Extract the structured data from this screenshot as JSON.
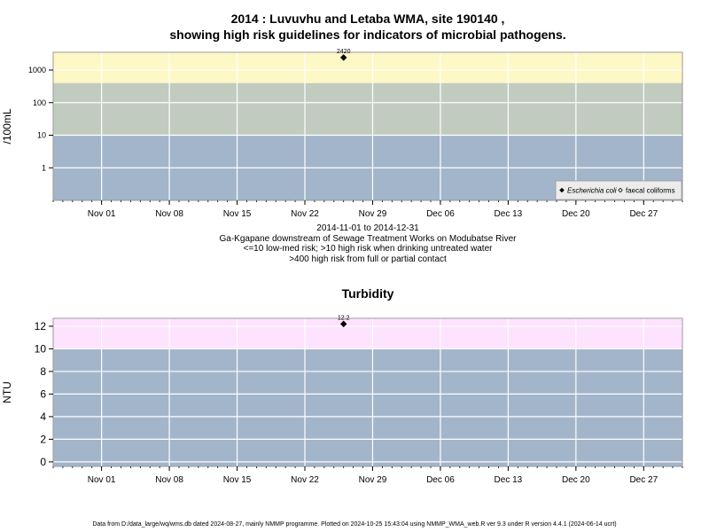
{
  "page": {
    "title_line1": "2014 : Luvuvhu and Letaba WMA, site 190140 ,",
    "title_line2": "showing high risk guidelines for indicators of microbial pathogens.",
    "caption_lines": [
      "2014-11-01 to 2014-12-31",
      "Ga-Kgapane downstream of Sewage Treatment Works on Modubatse River",
      "<=10 low-med risk; >10 high risk when drinking untreated water",
      ">400 high risk from full or partial contact"
    ],
    "turbidity_title": "Turbidity",
    "footer": "Data from D:/data_large/wq/wms.db dated 2024-08-27, mainly NMMP programme. Plotted on 2024-10-25 15:43:04 using NMMP_WMA_web.R ver 9.3 under R version 4.4.1 (2024-06-14 ucrt)"
  },
  "chart_data": [
    {
      "type": "scatter",
      "ylabel": "/100mL",
      "yscale": "log",
      "x_range": [
        "2014-10-27",
        "2014-12-31"
      ],
      "ylim": [
        0.1,
        3500
      ],
      "x_ticks": [
        {
          "date": "2014-11-01",
          "label": "Nov 01"
        },
        {
          "date": "2014-11-08",
          "label": "Nov 08"
        },
        {
          "date": "2014-11-15",
          "label": "Nov 15"
        },
        {
          "date": "2014-11-22",
          "label": "Nov 22"
        },
        {
          "date": "2014-11-29",
          "label": "Nov 29"
        },
        {
          "date": "2014-12-06",
          "label": "Dec 06"
        },
        {
          "date": "2014-12-13",
          "label": "Dec 13"
        },
        {
          "date": "2014-12-20",
          "label": "Dec 20"
        },
        {
          "date": "2014-12-27",
          "label": "Dec 27"
        }
      ],
      "y_ticks": [
        {
          "value": 1,
          "label": "1"
        },
        {
          "value": 10,
          "label": "10"
        },
        {
          "value": 100,
          "label": "100"
        },
        {
          "value": 1000,
          "label": "1000"
        }
      ],
      "bands": [
        {
          "from": 0.1,
          "to": 10,
          "color": "#a3b5cb"
        },
        {
          "from": 10,
          "to": 400,
          "color": "#c2cbbf"
        },
        {
          "from": 400,
          "to": 3500,
          "color": "#fef8c7"
        }
      ],
      "grid": true,
      "legend_position": "bottom-right",
      "series": [
        {
          "name": "Escherichia coli",
          "marker": "filled-diamond",
          "points": [
            {
              "x": "2014-11-26",
              "y": 2420,
              "label": "2420"
            }
          ]
        },
        {
          "name": "faecal coliforms",
          "marker": "open-diamond",
          "points": []
        }
      ]
    },
    {
      "type": "scatter",
      "ylabel": "NTU",
      "x_range": [
        "2014-10-27",
        "2014-12-31"
      ],
      "ylim": [
        -0.4,
        12.7
      ],
      "x_ticks": [
        {
          "date": "2014-11-01",
          "label": "Nov 01"
        },
        {
          "date": "2014-11-08",
          "label": "Nov 08"
        },
        {
          "date": "2014-11-15",
          "label": "Nov 15"
        },
        {
          "date": "2014-11-22",
          "label": "Nov 22"
        },
        {
          "date": "2014-11-29",
          "label": "Nov 29"
        },
        {
          "date": "2014-12-06",
          "label": "Dec 06"
        },
        {
          "date": "2014-12-13",
          "label": "Dec 13"
        },
        {
          "date": "2014-12-20",
          "label": "Dec 20"
        },
        {
          "date": "2014-12-27",
          "label": "Dec 27"
        }
      ],
      "y_ticks": [
        {
          "value": 0,
          "label": "0"
        },
        {
          "value": 2,
          "label": "2"
        },
        {
          "value": 4,
          "label": "4"
        },
        {
          "value": 6,
          "label": "6"
        },
        {
          "value": 8,
          "label": "8"
        },
        {
          "value": 10,
          "label": "10"
        },
        {
          "value": 12,
          "label": "12"
        }
      ],
      "bands": [
        {
          "from": -0.4,
          "to": 10,
          "color": "#a3b5cb"
        },
        {
          "from": 10,
          "to": 12.7,
          "color": "#fee3fe"
        }
      ],
      "grid": true,
      "series": [
        {
          "name": "",
          "marker": "filled-diamond",
          "points": [
            {
              "x": "2014-11-26",
              "y": 12.2,
              "label": "12.2"
            }
          ]
        }
      ]
    }
  ]
}
